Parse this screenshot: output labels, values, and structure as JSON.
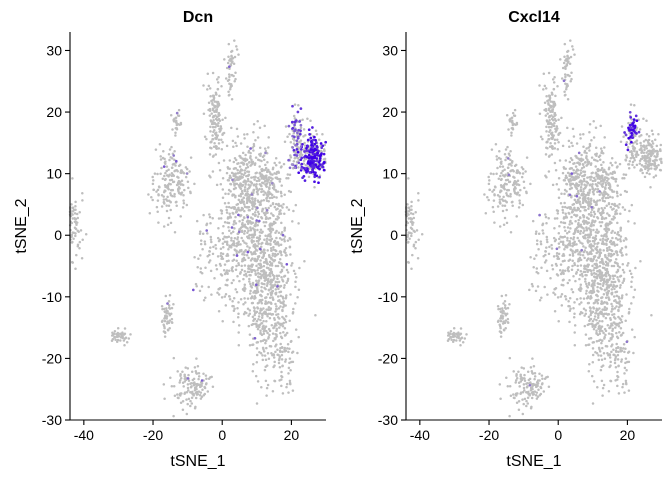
{
  "chart_data": [
    {
      "type": "scatter",
      "title": "Dcn",
      "xlabel": "tSNE_1",
      "ylabel": "tSNE_2",
      "xlim": [
        -44,
        30
      ],
      "ylim": [
        -30,
        33
      ],
      "xticks": [
        -40,
        -20,
        0,
        20
      ],
      "xtick_labels": [
        "-40",
        "-20",
        "0",
        "20"
      ],
      "yticks": [
        -30,
        -20,
        -10,
        0,
        10,
        20,
        30
      ],
      "ytick_labels": [
        "-30",
        "-20",
        "-10",
        "0",
        "10",
        "20",
        "30"
      ],
      "grid": false,
      "legend": "none",
      "colors": {
        "low": "#bebebe",
        "high": "#3f00e6"
      },
      "highlight_clusters": [
        {
          "x": 26.5,
          "y": 12.8,
          "sx": 2.0,
          "sy": 1.8,
          "n": 150,
          "level": 0.95
        },
        {
          "x": 21.5,
          "y": 17.0,
          "sx": 1.1,
          "sy": 1.6,
          "n": 30,
          "level": 0.55
        },
        {
          "x": 21.0,
          "y": 12.0,
          "sx": 1.0,
          "sy": 0.8,
          "n": 10,
          "level": 0.5
        }
      ],
      "scattered_expressing_points": 35
    },
    {
      "type": "scatter",
      "title": "Cxcl14",
      "xlabel": "tSNE_1",
      "ylabel": "tSNE_2",
      "xlim": [
        -44,
        30
      ],
      "ylim": [
        -30,
        33
      ],
      "xticks": [
        -40,
        -20,
        0,
        20
      ],
      "xtick_labels": [
        "-40",
        "-20",
        "0",
        "20"
      ],
      "yticks": [
        -30,
        -20,
        -10,
        0,
        10,
        20,
        30
      ],
      "ytick_labels": [
        "-30",
        "-20",
        "-10",
        "0",
        "10",
        "20",
        "30"
      ],
      "grid": false,
      "legend": "none",
      "colors": {
        "low": "#bebebe",
        "high": "#3f00e6"
      },
      "highlight_clusters": [
        {
          "x": 21.5,
          "y": 17.2,
          "sx": 0.9,
          "sy": 1.3,
          "n": 40,
          "level": 0.85
        }
      ],
      "scattered_expressing_points": 15
    }
  ],
  "background_clusters": [
    {
      "x": -44,
      "y": 1.5,
      "sx": 1.6,
      "sy": 2.6,
      "n": 120
    },
    {
      "x": -29.5,
      "y": -16.5,
      "sx": 1.2,
      "sy": 0.7,
      "n": 40
    },
    {
      "x": -16,
      "y": -13.5,
      "sx": 0.8,
      "sy": 1.5,
      "n": 50
    },
    {
      "x": -13.5,
      "y": 18.2,
      "sx": 0.8,
      "sy": 0.7,
      "n": 25
    },
    {
      "x": -15,
      "y": 8.5,
      "sx": 2.7,
      "sy": 3.0,
      "n": 170
    },
    {
      "x": -2.2,
      "y": 18.0,
      "sx": 1.3,
      "sy": 3.2,
      "n": 110
    },
    {
      "x": -2.2,
      "y": 22.0,
      "sx": 0.8,
      "sy": 1.5,
      "n": 25
    },
    {
      "x": 2.8,
      "y": 28.0,
      "sx": 0.9,
      "sy": 1.5,
      "n": 35
    },
    {
      "x": 2.5,
      "y": 24.0,
      "sx": 0.6,
      "sy": 1.2,
      "n": 15
    },
    {
      "x": -9,
      "y": -24.5,
      "sx": 3.0,
      "sy": 1.6,
      "n": 130
    },
    {
      "x": 8.0,
      "y": 3.0,
      "sx": 4.0,
      "sy": 6.0,
      "n": 380
    },
    {
      "x": 12.0,
      "y": -4.0,
      "sx": 4.3,
      "sy": 7.0,
      "n": 520
    },
    {
      "x": 14.5,
      "y": -14.0,
      "sx": 3.0,
      "sy": 5.0,
      "n": 240
    },
    {
      "x": 6.0,
      "y": 10.0,
      "sx": 3.0,
      "sy": 2.5,
      "n": 140
    },
    {
      "x": 14.0,
      "y": 8.0,
      "sx": 2.5,
      "sy": 2.5,
      "n": 80
    },
    {
      "x": 18.5,
      "y": -21.0,
      "sx": 1.3,
      "sy": 2.2,
      "n": 40
    },
    {
      "x": 1.5,
      "y": -4.0,
      "sx": 2.5,
      "sy": 4.5,
      "n": 100
    },
    {
      "x": -5.0,
      "y": -3.0,
      "sx": 1.6,
      "sy": 3.0,
      "n": 40
    },
    {
      "x": 21.5,
      "y": 17.0,
      "sx": 1.1,
      "sy": 1.6,
      "n": 40
    },
    {
      "x": 26.5,
      "y": 12.8,
      "sx": 2.0,
      "sy": 1.8,
      "n": 160
    },
    {
      "x": 22.0,
      "y": 12.5,
      "sx": 1.2,
      "sy": 0.9,
      "n": 25
    }
  ]
}
